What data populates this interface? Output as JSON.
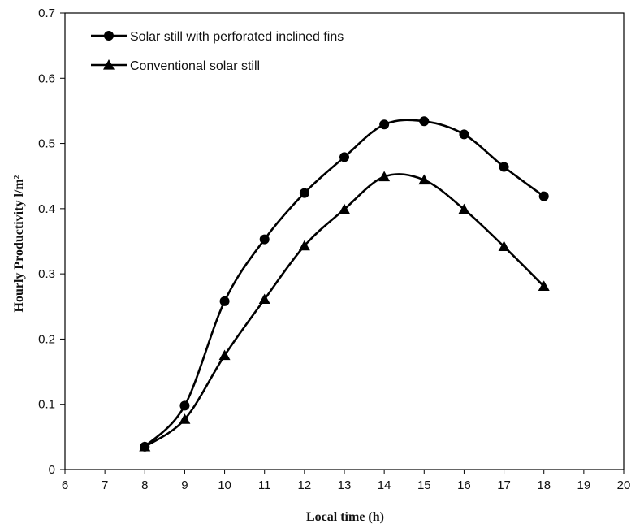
{
  "chart_data": {
    "type": "line",
    "xlabel": "Local time (h)",
    "ylabel": "Hourly Productivity l/m²",
    "xlim": [
      6,
      20
    ],
    "ylim": [
      0,
      0.7
    ],
    "xticks": [
      6,
      7,
      8,
      9,
      10,
      11,
      12,
      13,
      14,
      15,
      16,
      17,
      18,
      19,
      20
    ],
    "yticks": [
      0,
      0.1,
      0.2,
      0.3,
      0.4,
      0.5,
      0.6,
      0.7
    ],
    "grid": false,
    "legend_position": "top-left",
    "x": [
      8,
      9,
      10,
      11,
      12,
      13,
      14,
      15,
      16,
      17,
      18
    ],
    "series": [
      {
        "name": "Solar still with perforated inclined fins",
        "marker": "circle",
        "color": "#000000",
        "values": [
          0.035,
          0.098,
          0.258,
          0.353,
          0.424,
          0.479,
          0.529,
          0.534,
          0.514,
          0.464,
          0.419
        ]
      },
      {
        "name": "Conventional solar still",
        "marker": "triangle",
        "color": "#000000",
        "values": [
          0.035,
          0.077,
          0.175,
          0.261,
          0.343,
          0.399,
          0.449,
          0.444,
          0.399,
          0.342,
          0.281
        ]
      }
    ]
  }
}
